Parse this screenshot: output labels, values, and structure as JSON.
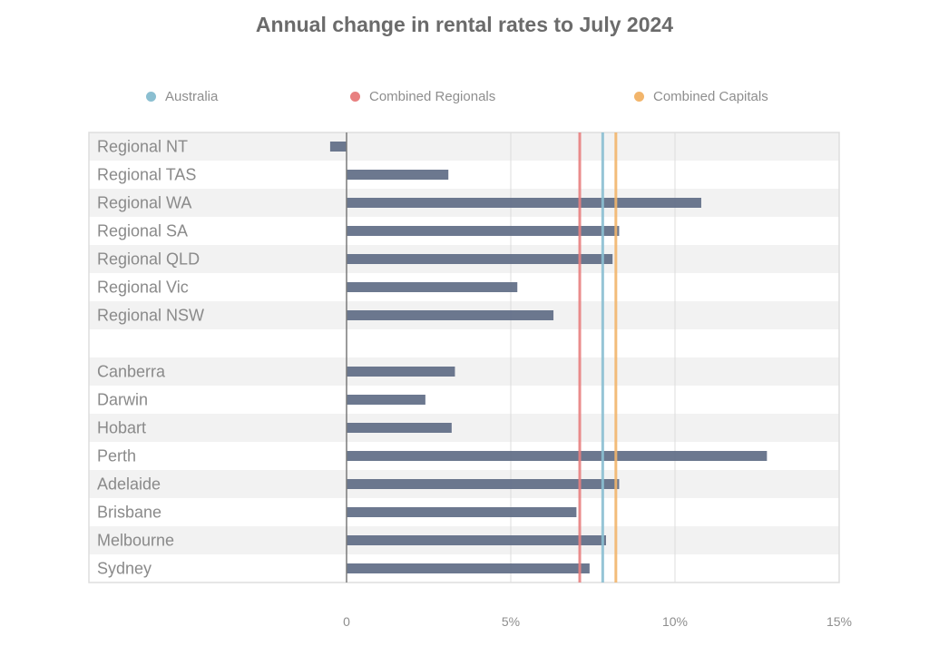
{
  "chart_data": {
    "type": "bar",
    "orientation": "horizontal",
    "title": "Annual change in rental rates to July 2024",
    "xlabel": "",
    "ylabel": "",
    "xlim": [
      -1.5,
      15
    ],
    "x_ticks": [
      {
        "value": 0,
        "label": "0"
      },
      {
        "value": 5,
        "label": "5%"
      },
      {
        "value": 10,
        "label": "10%"
      },
      {
        "value": 15,
        "label": "15%"
      }
    ],
    "grid": true,
    "legend_position": "top",
    "categories": [
      "Regional NT",
      "Regional TAS",
      "Regional WA",
      "Regional SA",
      "Regional QLD",
      "Regional Vic",
      "Regional NSW",
      "",
      "Canberra",
      "Darwin",
      "Hobart",
      "Perth",
      "Adelaide",
      "Brisbane",
      "Melbourne",
      "Sydney"
    ],
    "series": [
      {
        "name": "Annual change",
        "color": "#5f6d85",
        "values": [
          -0.5,
          3.1,
          10.8,
          8.3,
          8.1,
          5.2,
          6.3,
          null,
          3.3,
          2.4,
          3.2,
          12.8,
          8.3,
          7.0,
          7.9,
          7.4
        ]
      }
    ],
    "reference_lines": [
      {
        "name": "Australia",
        "value": 7.8,
        "color": "#8bbfd1"
      },
      {
        "name": "Combined Regionals",
        "value": 7.1,
        "color": "#e88080"
      },
      {
        "name": "Combined Capitals",
        "value": 8.2,
        "color": "#f2b56b"
      }
    ]
  },
  "legend": [
    {
      "label": "Australia",
      "color": "#8bbfd1"
    },
    {
      "label": "Combined Regionals",
      "color": "#e88080"
    },
    {
      "label": "Combined Capitals",
      "color": "#f2b56b"
    }
  ]
}
